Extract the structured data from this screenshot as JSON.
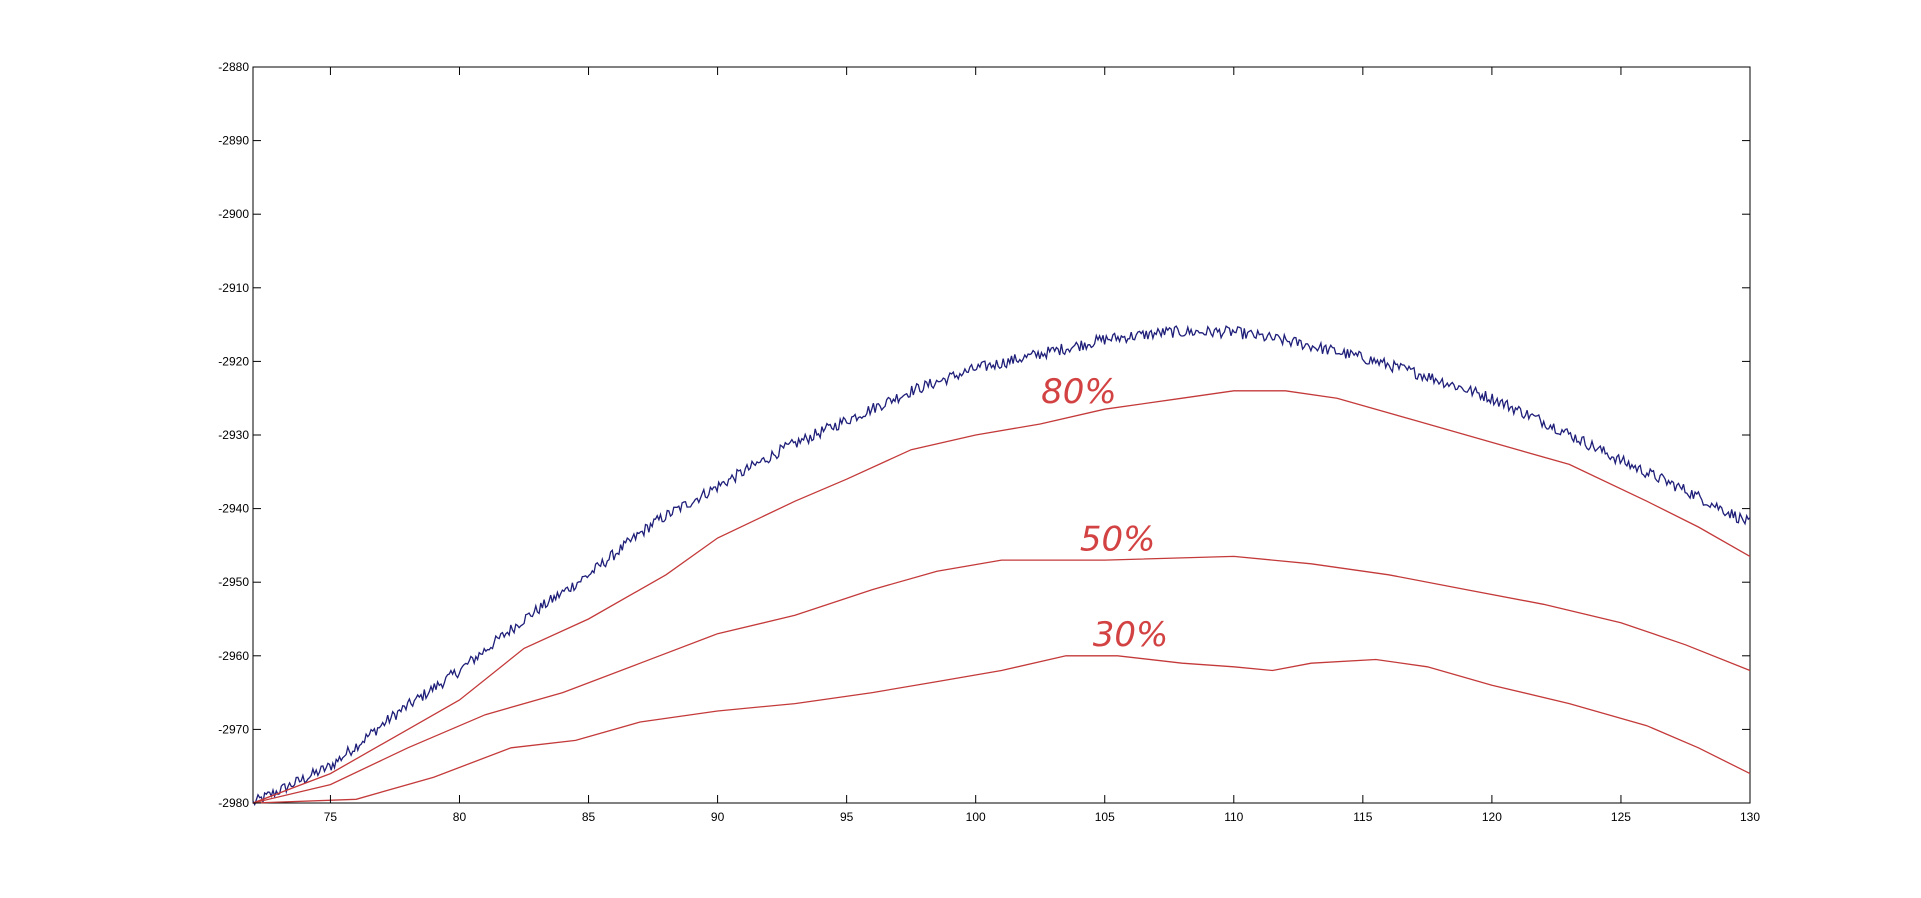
{
  "chart_data": {
    "type": "line",
    "title": "",
    "xlabel": "",
    "ylabel": "",
    "xlim": [
      72,
      130
    ],
    "ylim": [
      -2980,
      -2880
    ],
    "grid": false,
    "x_ticks": [
      75,
      80,
      85,
      90,
      95,
      100,
      105,
      110,
      115,
      120,
      125,
      130
    ],
    "y_ticks": [
      -2880,
      -2890,
      -2900,
      -2910,
      -2920,
      -2930,
      -2940,
      -2950,
      -2960,
      -2970,
      -2980
    ],
    "x_tick_labels": [
      "75",
      "80",
      "85",
      "90",
      "95",
      "100",
      "105",
      "110",
      "115",
      "120",
      "125",
      "130"
    ],
    "y_tick_labels": [
      "-2880",
      "-2890",
      "-2900",
      "-2910",
      "-2920",
      "-2930",
      "-2940",
      "-2950",
      "-2960",
      "-2970",
      "-2980"
    ],
    "colors": {
      "noisy": "#1f1f7a",
      "contours": "#c43a3a",
      "annotations": "#d34242"
    },
    "series": [
      {
        "color": "#1f1f7a",
        "noisy": true,
        "x": [
          72,
          75,
          77.5,
          80,
          82.5,
          85,
          87.5,
          90,
          92.5,
          95,
          97.5,
          100,
          102.5,
          105,
          107.5,
          110,
          112.5,
          115,
          117.5,
          120,
          122.5,
          125,
          127.5,
          130
        ],
        "y": [
          -2980,
          -2975,
          -2968,
          -2962,
          -2955,
          -2949,
          -2942,
          -2937,
          -2932,
          -2928,
          -2924,
          -2921,
          -2919,
          -2917,
          -2916,
          -2916,
          -2917.5,
          -2919.5,
          -2922,
          -2925,
          -2929,
          -2933.5,
          -2937.5,
          -2942
        ]
      },
      {
        "color": "#c43a3a",
        "x": [
          72,
          75,
          78,
          80,
          82.5,
          85,
          88,
          90,
          93,
          95,
          97.5,
          100,
          102.5,
          105,
          108,
          110,
          112,
          114,
          117,
          120,
          123,
          126,
          128,
          130
        ],
        "y": [
          -2980,
          -2976,
          -2970,
          -2966,
          -2959,
          -2955,
          -2949,
          -2944,
          -2939,
          -2936,
          -2932,
          -2930,
          -2928.5,
          -2926.5,
          -2925,
          -2924,
          -2924,
          -2925,
          -2928,
          -2931,
          -2934,
          -2939,
          -2942.5,
          -2946.5
        ]
      },
      {
        "color": "#c43a3a",
        "x": [
          72,
          75,
          78,
          81,
          84,
          87,
          90,
          93,
          96,
          98.5,
          101,
          105,
          110,
          113,
          116,
          119,
          122,
          125,
          127.5,
          130
        ],
        "y": [
          -2980,
          -2977.5,
          -2972.5,
          -2968,
          -2965,
          -2961,
          -2957,
          -2954.5,
          -2951,
          -2948.5,
          -2947,
          -2947,
          -2946.5,
          -2947.5,
          -2949,
          -2951,
          -2953,
          -2955.5,
          -2958.5,
          -2962
        ]
      },
      {
        "color": "#c43a3a",
        "x": [
          72,
          76,
          79,
          82,
          84.5,
          87,
          90,
          93,
          96,
          98.5,
          101,
          103.5,
          105.5,
          108,
          110,
          111.5,
          113,
          115.5,
          117.5,
          120,
          123,
          126,
          128,
          130
        ],
        "y": [
          -2980,
          -2979.5,
          -2976.5,
          -2972.5,
          -2971.5,
          -2969,
          -2967.5,
          -2966.5,
          -2965,
          -2963.5,
          -2962,
          -2960,
          -2960,
          -2961,
          -2961.5,
          -2962,
          -2961,
          -2960.5,
          -2961.5,
          -2964,
          -2966.5,
          -2969.5,
          -2972.5,
          -2976
        ]
      }
    ],
    "annotations": [
      {
        "text": "80%",
        "x": 104,
        "y": -2926.5
      },
      {
        "text": "50%",
        "x": 105.5,
        "y": -2946.5
      },
      {
        "text": "30%",
        "x": 106,
        "y": -2959.5
      }
    ]
  }
}
